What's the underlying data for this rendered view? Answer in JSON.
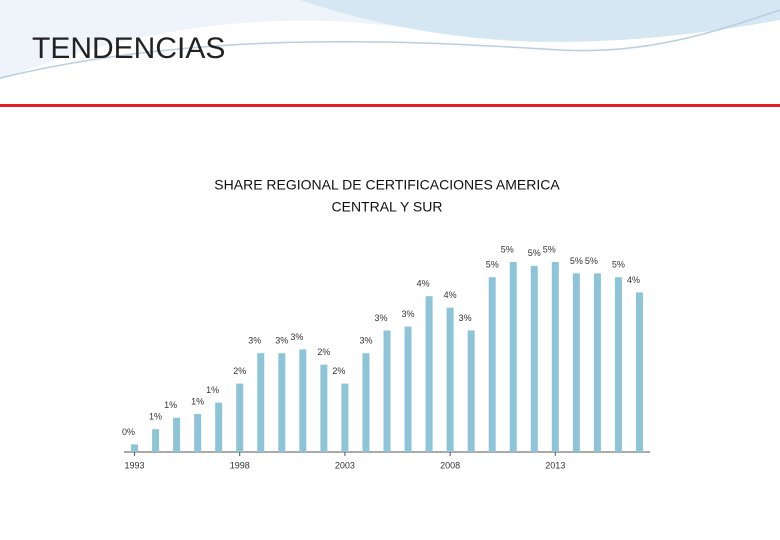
{
  "slide_title": "TENDENCIAS",
  "chart_data": {
    "type": "bar",
    "title": [
      "SHARE REGIONAL DE CERTIFICACIONES AMERICA",
      "CENTRAL Y SUR"
    ],
    "categories": [
      "1993",
      null,
      null,
      null,
      null,
      "1998",
      null,
      null,
      null,
      null,
      "2003",
      null,
      null,
      null,
      null,
      "2008",
      null,
      null,
      null,
      null,
      "2013",
      null,
      null,
      null,
      null
    ],
    "values": [
      0.2,
      0.6,
      0.9,
      1.0,
      1.3,
      1.8,
      2.6,
      2.6,
      2.7,
      2.3,
      1.8,
      2.6,
      3.2,
      3.3,
      4.1,
      3.8,
      3.2,
      4.6,
      5.0,
      4.9,
      5.0,
      4.7,
      4.7,
      4.6,
      4.2
    ],
    "value_labels": [
      "0%",
      "1%",
      "1%",
      "1%",
      "1%",
      "2%",
      "3%",
      "3%",
      "3%",
      "2%",
      "2%",
      "3%",
      "3%",
      "3%",
      "4%",
      "4%",
      "3%",
      "5%",
      "5%",
      "5%",
      "5%",
      "5%",
      "5%",
      "5%",
      "4%"
    ],
    "color": "#8ec4d8"
  }
}
